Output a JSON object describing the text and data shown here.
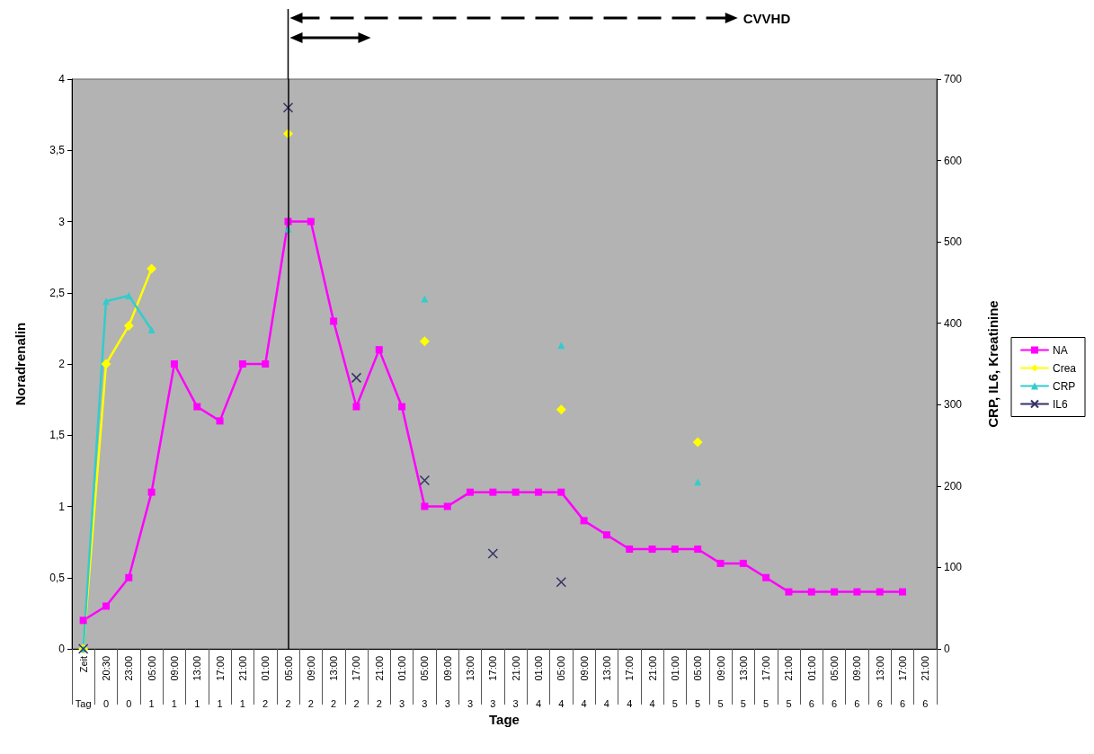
{
  "chart_data": {
    "type": "line",
    "xlabel": "Tage",
    "ylabel": "Noradrenalin",
    "y2label": "CRP, IL6, Kreatinine",
    "categories": [
      "Zeit\nTag",
      "20:30\n0",
      "23:00\n0",
      "05:00\n1",
      "09:00\n1",
      "13:00\n1",
      "17:00\n1",
      "21:00\n1",
      "01:00\n2",
      "05:00\n2",
      "09:00\n2",
      "13:00\n2",
      "17:00\n2",
      "21:00\n2",
      "01:00\n3",
      "05:00\n3",
      "09:00\n3",
      "13:00\n3",
      "17:00\n3",
      "21:00\n3",
      "01:00\n4",
      "05:00\n4",
      "09:00\n4",
      "13:00\n4",
      "17:00\n4",
      "21:00\n4",
      "01:00\n5",
      "05:00\n5",
      "09:00\n5",
      "13:00\n5",
      "17:00\n5",
      "21:00\n5",
      "01:00\n6",
      "05:00\n6",
      "09:00\n6",
      "13:00\n6",
      "17:00\n6",
      "21:00\n6"
    ],
    "series": [
      {
        "name": "NA",
        "color": "#ff00ff",
        "marker": "square",
        "values": [
          0.2,
          0.3,
          0.5,
          1.1,
          2.0,
          1.7,
          1.6,
          2.0,
          2.0,
          3.0,
          3.0,
          2.3,
          1.7,
          2.1,
          1.7,
          1.0,
          1.0,
          1.1,
          1.1,
          1.1,
          1.1,
          1.1,
          0.9,
          0.8,
          0.7,
          0.7,
          0.7,
          0.7,
          0.6,
          0.6,
          0.5,
          0.4,
          0.4,
          0.4,
          0.4,
          0.4,
          0.4,
          null
        ]
      },
      {
        "name": "Crea",
        "color": "#ffff00",
        "marker": "diamond",
        "axis": "y2",
        "values": [
          0,
          350,
          397,
          467,
          null,
          null,
          null,
          null,
          null,
          633,
          null,
          null,
          null,
          null,
          null,
          378,
          null,
          null,
          null,
          null,
          null,
          294,
          null,
          null,
          null,
          null,
          null,
          254,
          null,
          null,
          null,
          null,
          null,
          null,
          null,
          null,
          null,
          null
        ]
      },
      {
        "name": "CRP",
        "color": "#33cccc",
        "marker": "triangle",
        "axis": "y2",
        "values": [
          0,
          427,
          434,
          392,
          null,
          null,
          null,
          null,
          null,
          516,
          null,
          null,
          null,
          null,
          null,
          430,
          null,
          null,
          null,
          null,
          null,
          373,
          null,
          null,
          null,
          null,
          null,
          205,
          null,
          null,
          null,
          null,
          null,
          null,
          null,
          null,
          null,
          null
        ]
      },
      {
        "name": "IL6",
        "color": "#333366",
        "marker": "cross",
        "axis": "y2",
        "values": [
          0,
          null,
          null,
          null,
          null,
          null,
          null,
          null,
          null,
          665,
          null,
          null,
          333,
          null,
          null,
          207,
          null,
          null,
          117,
          null,
          null,
          82,
          null,
          null,
          null,
          null,
          null,
          null,
          null,
          null,
          null,
          null,
          null,
          null,
          null,
          null,
          null,
          null
        ]
      }
    ],
    "ylim": [
      0,
      4
    ],
    "yticks": [
      0,
      {
        "value": 0.5,
        "label": "0,5"
      },
      1,
      {
        "value": 1.5,
        "label": "1,5"
      },
      2,
      {
        "value": 2.5,
        "label": "2,5"
      },
      3,
      {
        "value": 3.5,
        "label": "3,5"
      },
      4
    ],
    "y2lim": [
      0,
      700
    ],
    "y2ticks": [
      0,
      100,
      200,
      300,
      400,
      500,
      600,
      700
    ],
    "ref_lines": [
      {
        "axis": "x",
        "value": "05:00\n2",
        "label": null,
        "color": "#000000"
      }
    ],
    "annotations": [
      "CVVHD"
    ],
    "legend": "right",
    "grid": false
  }
}
